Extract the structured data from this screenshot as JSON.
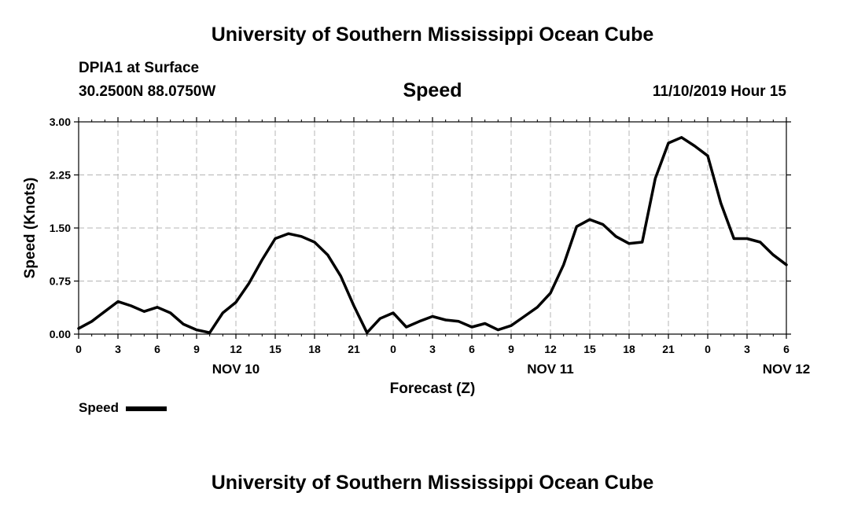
{
  "page": {
    "title_top": "University of Southern Mississippi Ocean Cube",
    "title_bottom": "University of Southern Mississippi Ocean Cube",
    "station": "DPIA1 at Surface",
    "location": "30.2500N 88.0750W",
    "timestamp": "11/10/2019 Hour 15"
  },
  "chart_data": {
    "type": "line",
    "title": "Speed",
    "xlabel": "Forecast (Z)",
    "ylabel": "Speed (Knots)",
    "x_tick_labels": [
      "0",
      "3",
      "6",
      "9",
      "12",
      "15",
      "18",
      "21",
      "0",
      "3",
      "6",
      "9",
      "12",
      "15",
      "18",
      "21",
      "0",
      "3",
      "6"
    ],
    "day_labels": [
      {
        "label": "NOV 10",
        "x": 12
      },
      {
        "label": "NOV 11",
        "x": 36
      },
      {
        "label": "NOV 12",
        "x": 54
      }
    ],
    "xlim": [
      0,
      54
    ],
    "ylim": [
      0,
      3.0
    ],
    "y_ticks": [
      "0.00",
      "0.75",
      "1.50",
      "2.25",
      "3.00"
    ],
    "grid": true,
    "legend_position": "bottom-left",
    "colors": {
      "line": "#000000",
      "grid": "#b4b4b4"
    },
    "series": [
      {
        "name": "Speed",
        "x": [
          0,
          1,
          2,
          3,
          4,
          5,
          6,
          7,
          8,
          9,
          10,
          11,
          12,
          13,
          14,
          15,
          16,
          17,
          18,
          19,
          20,
          21,
          22,
          23,
          24,
          25,
          26,
          27,
          28,
          29,
          30,
          31,
          32,
          33,
          34,
          35,
          36,
          37,
          38,
          39,
          40,
          41,
          42,
          43,
          44,
          45,
          46,
          47,
          48,
          49,
          50,
          51,
          52,
          53,
          54
        ],
        "values": [
          0.08,
          0.18,
          0.32,
          0.46,
          0.4,
          0.32,
          0.38,
          0.3,
          0.14,
          0.06,
          0.02,
          0.3,
          0.45,
          0.72,
          1.05,
          1.35,
          1.42,
          1.38,
          1.3,
          1.12,
          0.82,
          0.4,
          0.02,
          0.22,
          0.3,
          0.1,
          0.18,
          0.25,
          0.2,
          0.18,
          0.1,
          0.15,
          0.06,
          0.12,
          0.25,
          0.38,
          0.58,
          0.98,
          1.52,
          1.62,
          1.55,
          1.38,
          1.28,
          1.3,
          2.2,
          2.7,
          2.78,
          2.66,
          2.52,
          1.85,
          1.35,
          1.35,
          1.3,
          1.12,
          0.98
        ]
      }
    ]
  }
}
